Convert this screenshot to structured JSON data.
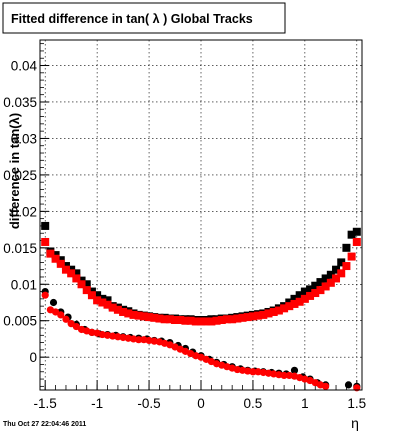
{
  "chart_data": {
    "type": "scatter",
    "title": "Fitted difference in tan( λ )  Global Tracks",
    "xlabel": "η",
    "ylabel": "difference in tan(λ)",
    "xlim": [
      -1.55,
      1.55
    ],
    "ylim": [
      -0.0045,
      0.0435
    ],
    "x_ticks": [
      "-1.5",
      "-1",
      "-0.5",
      "0",
      "0.5",
      "1",
      "1.5"
    ],
    "y_ticks": [
      "0",
      "0.005",
      "0.01",
      "0.015",
      "0.02",
      "0.025",
      "0.03",
      "0.035",
      "0.04"
    ],
    "grid": true,
    "timestamp": "Thu Oct 27 22:04:46 2011",
    "series": [
      {
        "marker": "square",
        "color": "#000000",
        "x": [
          -1.5,
          -1.45,
          -1.4,
          -1.35,
          -1.3,
          -1.25,
          -1.2,
          -1.15,
          -1.1,
          -1.05,
          -1,
          -0.95,
          -0.9,
          -0.85,
          -0.8,
          -0.75,
          -0.7,
          -0.65,
          -0.6,
          -0.55,
          -0.5,
          -0.45,
          -0.4,
          -0.35,
          -0.3,
          -0.25,
          -0.2,
          -0.15,
          -0.1,
          -0.05,
          0,
          0.05,
          0.1,
          0.15,
          0.2,
          0.25,
          0.3,
          0.35,
          0.4,
          0.45,
          0.5,
          0.55,
          0.6,
          0.65,
          0.7,
          0.75,
          0.8,
          0.85,
          0.9,
          0.95,
          1,
          1.05,
          1.1,
          1.15,
          1.2,
          1.25,
          1.3,
          1.35,
          1.4,
          1.45,
          1.5
        ],
        "y": [
          0.018,
          0.0145,
          0.014,
          0.0133,
          0.0125,
          0.012,
          0.0115,
          0.0105,
          0.01,
          0.009,
          0.0085,
          0.008,
          0.0078,
          0.007,
          0.0068,
          0.0065,
          0.0063,
          0.006,
          0.0058,
          0.0057,
          0.0056,
          0.0055,
          0.0054,
          0.0054,
          0.0053,
          0.0053,
          0.0052,
          0.0052,
          0.0052,
          0.0051,
          0.0051,
          0.0051,
          0.0052,
          0.0052,
          0.0053,
          0.0053,
          0.0054,
          0.0055,
          0.0056,
          0.0057,
          0.0058,
          0.0059,
          0.006,
          0.0062,
          0.0064,
          0.0067,
          0.007,
          0.0075,
          0.008,
          0.0085,
          0.009,
          0.0093,
          0.0098,
          0.0103,
          0.0108,
          0.0113,
          0.012,
          0.013,
          0.015,
          0.0168,
          0.0172
        ]
      },
      {
        "marker": "square",
        "color": "#ff0000",
        "x": [
          -1.5,
          -1.45,
          -1.4,
          -1.35,
          -1.3,
          -1.25,
          -1.2,
          -1.15,
          -1.1,
          -1.05,
          -1,
          -0.95,
          -0.9,
          -0.85,
          -0.8,
          -0.75,
          -0.7,
          -0.65,
          -0.6,
          -0.55,
          -0.5,
          -0.45,
          -0.4,
          -0.35,
          -0.3,
          -0.25,
          -0.2,
          -0.15,
          -0.1,
          -0.05,
          0,
          0.05,
          0.1,
          0.15,
          0.2,
          0.25,
          0.3,
          0.35,
          0.4,
          0.45,
          0.5,
          0.55,
          0.6,
          0.65,
          0.7,
          0.75,
          0.8,
          0.85,
          0.9,
          0.95,
          1,
          1.05,
          1.1,
          1.15,
          1.2,
          1.25,
          1.3,
          1.35,
          1.4,
          1.45,
          1.5
        ],
        "y": [
          0.0158,
          0.0142,
          0.0135,
          0.0128,
          0.012,
          0.0115,
          0.0108,
          0.01,
          0.0092,
          0.0085,
          0.0078,
          0.0075,
          0.0072,
          0.0068,
          0.0065,
          0.0062,
          0.006,
          0.0058,
          0.0057,
          0.0056,
          0.0055,
          0.0054,
          0.0053,
          0.0052,
          0.0052,
          0.0051,
          0.0051,
          0.005,
          0.005,
          0.0049,
          0.0049,
          0.0049,
          0.0049,
          0.005,
          0.0051,
          0.0052,
          0.0052,
          0.0053,
          0.0054,
          0.0055,
          0.0056,
          0.0057,
          0.0058,
          0.006,
          0.0062,
          0.0064,
          0.0067,
          0.007,
          0.0073,
          0.0076,
          0.008,
          0.0084,
          0.0088,
          0.0092,
          0.0097,
          0.0102,
          0.0108,
          0.0115,
          0.0125,
          0.0138,
          0.0158
        ]
      },
      {
        "marker": "circle",
        "color": "#000000",
        "x": [
          -1.5,
          -1.42,
          -1.35,
          -1.28,
          -1.2,
          -1.12,
          -1.05,
          -0.98,
          -0.9,
          -0.82,
          -0.75,
          -0.68,
          -0.6,
          -0.52,
          -0.45,
          -0.38,
          -0.3,
          -0.22,
          -0.15,
          -0.08,
          0,
          0.08,
          0.15,
          0.22,
          0.3,
          0.38,
          0.45,
          0.52,
          0.6,
          0.68,
          0.75,
          0.82,
          0.9,
          0.98,
          1.05,
          1.12,
          1.2,
          1.42,
          1.5
        ],
        "y": [
          0.009,
          0.0075,
          0.0062,
          0.0055,
          0.0045,
          0.0038,
          0.0034,
          0.0032,
          0.0031,
          0.003,
          0.0028,
          0.0027,
          0.0026,
          0.0025,
          0.0023,
          0.0022,
          0.002,
          0.0016,
          0.0012,
          0.0007,
          0.0002,
          -0.0003,
          -0.0007,
          -0.001,
          -0.0013,
          -0.0016,
          -0.0018,
          -0.0019,
          -0.002,
          -0.0021,
          -0.0022,
          -0.0023,
          -0.0018,
          -0.0027,
          -0.003,
          -0.0035,
          -0.0038,
          -0.0038,
          -0.004
        ]
      },
      {
        "marker": "circle",
        "color": "#ff0000",
        "x": [
          -1.5,
          -1.45,
          -1.4,
          -1.35,
          -1.3,
          -1.25,
          -1.2,
          -1.15,
          -1.1,
          -1.05,
          -1,
          -0.95,
          -0.9,
          -0.85,
          -0.8,
          -0.75,
          -0.7,
          -0.65,
          -0.6,
          -0.55,
          -0.5,
          -0.45,
          -0.4,
          -0.35,
          -0.3,
          -0.25,
          -0.2,
          -0.15,
          -0.1,
          -0.05,
          0,
          0.05,
          0.1,
          0.15,
          0.2,
          0.25,
          0.3,
          0.35,
          0.4,
          0.45,
          0.5,
          0.55,
          0.6,
          0.65,
          0.7,
          0.75,
          0.8,
          0.85,
          0.9,
          0.95,
          1,
          1.05,
          1.1,
          1.15,
          1.2,
          1.5
        ],
        "y": [
          0.0085,
          0.0065,
          0.0062,
          0.0058,
          0.0052,
          0.0046,
          0.0042,
          0.0038,
          0.0036,
          0.0034,
          0.0033,
          0.0031,
          0.003,
          0.0029,
          0.0028,
          0.0027,
          0.0026,
          0.0025,
          0.0024,
          0.0024,
          0.0023,
          0.0022,
          0.0021,
          0.0019,
          0.0017,
          0.0014,
          0.0011,
          0.0008,
          0.0005,
          0.0002,
          0,
          -0.0003,
          -0.0006,
          -0.0009,
          -0.0011,
          -0.0013,
          -0.0015,
          -0.0017,
          -0.0018,
          -0.0019,
          -0.002,
          -0.002,
          -0.0021,
          -0.0022,
          -0.0023,
          -0.0024,
          -0.0025,
          -0.0025,
          -0.0026,
          -0.0028,
          -0.003,
          -0.0032,
          -0.0035,
          -0.0038,
          -0.004,
          -0.0042
        ]
      }
    ]
  }
}
